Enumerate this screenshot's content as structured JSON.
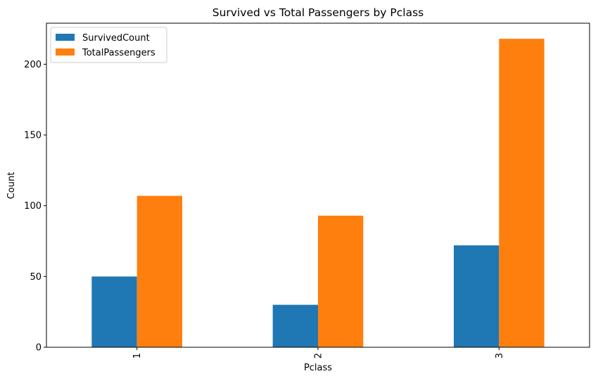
{
  "chart_data": {
    "type": "bar",
    "title": "Survived vs Total Passengers by Pclass",
    "xlabel": "Pclass",
    "ylabel": "Count",
    "categories": [
      "1",
      "2",
      "3"
    ],
    "series": [
      {
        "name": "SurvivedCount",
        "values": [
          50,
          30,
          72
        ],
        "color": "#1f77b4"
      },
      {
        "name": "TotalPassengers",
        "values": [
          107,
          93,
          218
        ],
        "color": "#ff7f0e"
      }
    ],
    "yticks": [
      0,
      50,
      100,
      150,
      200
    ],
    "ylim": [
      0,
      229
    ],
    "grid": false,
    "legend_position": "top-left",
    "xtick_rotation": "vertical"
  }
}
